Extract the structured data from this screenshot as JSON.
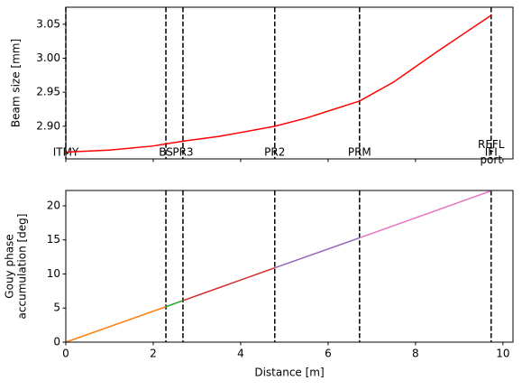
{
  "chart_data": [
    {
      "type": "line",
      "ylabel": "Beam size [mm]",
      "xlim": [
        0,
        10.23
      ],
      "xticks": [
        0,
        2,
        4,
        6,
        8,
        10
      ],
      "ylim": [
        2.852,
        3.075
      ],
      "yticks": [
        {
          "value": 2.9,
          "label": "2.90"
        },
        {
          "value": 2.95,
          "label": "2.95"
        },
        {
          "value": 3.0,
          "label": "3.00"
        },
        {
          "value": 3.05,
          "label": "3.05"
        }
      ],
      "series": [
        {
          "color": "#ff0000",
          "x": [
            0,
            1,
            2,
            2.29,
            2.68,
            3.5,
            4.78,
            5.5,
            6.72,
            7.5,
            8.5,
            9.73
          ],
          "values": [
            2.862,
            2.865,
            2.871,
            2.874,
            2.878,
            2.885,
            2.9,
            2.912,
            2.937,
            2.965,
            3.01,
            3.063
          ]
        }
      ],
      "markers": [
        {
          "name": [
            "ITMY"
          ],
          "x": 0
        },
        {
          "name": [
            "BS"
          ],
          "x": 2.29
        },
        {
          "name": [
            "PR3"
          ],
          "x": 2.68
        },
        {
          "name": [
            "PR2"
          ],
          "x": 4.78
        },
        {
          "name": [
            "PRM"
          ],
          "x": 6.72
        },
        {
          "name": [
            "REFL",
            "IFI",
            "port"
          ],
          "x": 9.73
        }
      ]
    },
    {
      "type": "line",
      "ylabel": [
        "Gouy phase",
        "accumulation [deg]"
      ],
      "xlabel": "Distance [m]",
      "xlim": [
        0,
        10.23
      ],
      "xticks": [
        0,
        2,
        4,
        6,
        8,
        10
      ],
      "ylim": [
        0,
        22.25
      ],
      "yticks": [
        0,
        5,
        10,
        15,
        20
      ],
      "series": [
        {
          "color": "#ff7f0e",
          "x": [
            0,
            2.29
          ],
          "values": [
            0,
            5.2
          ]
        },
        {
          "color": "#2ca02c",
          "x": [
            2.29,
            2.68
          ],
          "values": [
            5.2,
            6.1
          ]
        },
        {
          "color": "#d62728",
          "x": [
            2.68,
            4.78
          ],
          "values": [
            6.1,
            10.9
          ]
        },
        {
          "color": "#9467bd",
          "x": [
            4.78,
            6.72
          ],
          "values": [
            10.9,
            15.3
          ]
        },
        {
          "color": "#e377c2",
          "x": [
            6.72,
            9.73
          ],
          "values": [
            15.3,
            22.2
          ]
        }
      ],
      "vlines": [
        2.29,
        2.68,
        4.78,
        6.72,
        9.73
      ]
    }
  ]
}
